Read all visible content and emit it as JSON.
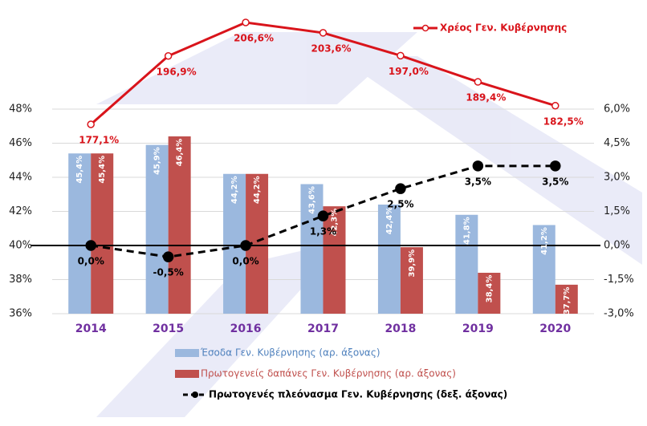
{
  "chart_data": {
    "type": "bar",
    "categories": [
      "2014",
      "2015",
      "2016",
      "2017",
      "2018",
      "2019",
      "2020"
    ],
    "ylim": [
      36,
      48
    ],
    "yticks": [
      {
        "value": 36,
        "label": "36%"
      },
      {
        "value": 38,
        "label": "38%"
      },
      {
        "value": 40,
        "label": "40%"
      },
      {
        "value": 42,
        "label": "42%"
      },
      {
        "value": 44,
        "label": "44%"
      },
      {
        "value": 46,
        "label": "46%"
      },
      {
        "value": 48,
        "label": "48%"
      }
    ],
    "y2lim": [
      -3,
      6
    ],
    "y2ticks": [
      {
        "value": -3,
        "label": "-3,0%"
      },
      {
        "value": -1.5,
        "label": "-1,5%"
      },
      {
        "value": 0,
        "label": "0,0%"
      },
      {
        "value": 1.5,
        "label": "1,5%"
      },
      {
        "value": 3,
        "label": "3,0%"
      },
      {
        "value": 4.5,
        "label": "4,5%"
      },
      {
        "value": 6,
        "label": "6,0%"
      }
    ],
    "grid": true,
    "series": [
      {
        "name": "Έσοδα Γεν. Κυβέρνησης (αρ. άξονας)",
        "type": "bar",
        "color": "#9bb8de",
        "values": [
          45.4,
          45.9,
          44.2,
          43.6,
          42.4,
          41.8,
          41.2
        ],
        "value_labels": [
          "45,4%",
          "45,9%",
          "44,2%",
          "43,6%",
          "42,4%",
          "41,8%",
          "41,2%"
        ]
      },
      {
        "name": "Πρωτογενείς δαπάνες Γεν. Κυβέρνησης (αρ. άξονας)",
        "type": "bar",
        "color": "#c0504d",
        "values": [
          45.4,
          46.4,
          44.2,
          42.3,
          39.9,
          38.4,
          37.7
        ],
        "value_labels": [
          "45,4%",
          "46,4%",
          "44,2%",
          "42,3%",
          "39,9%",
          "38,4%",
          "37,7%"
        ]
      },
      {
        "name": "Πρωτογενές πλεόνασμα Γεν. Κυβέρνησης (δεξ. άξονας)",
        "type": "line",
        "axis": "y2",
        "color": "#000000",
        "values": [
          0,
          -0.5,
          0,
          1.3,
          2.5,
          3.5,
          3.5
        ],
        "value_labels": [
          "0,0%",
          "-0,5%",
          "0,0%",
          "1,3%",
          "2,5%",
          "3,5%",
          "3,5%"
        ]
      },
      {
        "name": "Χρέος Γεν. Κυβέρνησης",
        "type": "line",
        "color": "#d9141b",
        "values": [
          177.1,
          196.9,
          206.6,
          203.6,
          197.0,
          189.4,
          182.5
        ],
        "value_labels": [
          "177,1%",
          "196,9%",
          "206,6%",
          "203,6%",
          "197,0%",
          "189,4%",
          "182,5%"
        ]
      }
    ]
  }
}
